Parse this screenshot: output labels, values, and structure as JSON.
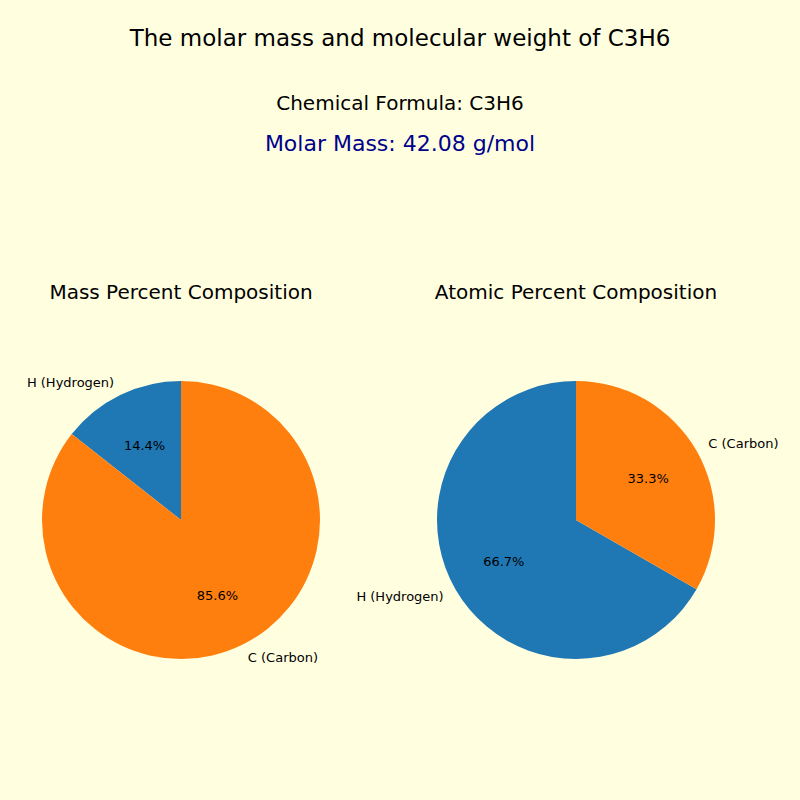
{
  "title": "The molar mass and molecular weight of C3H6",
  "subtitles": [
    "Chemical Formula: C3H6",
    "Molar Mass: 42.08 g/mol"
  ],
  "chart_data": [
    {
      "type": "pie",
      "title": "Mass Percent Composition",
      "categories": [
        "H (Hydrogen)",
        "C (Carbon)"
      ],
      "values": [
        14.4,
        85.6
      ],
      "value_labels": [
        "14.4%",
        "85.6%"
      ],
      "colors": [
        "#1f77b4",
        "#ff7f0e"
      ],
      "data_labels": true
    },
    {
      "type": "pie",
      "title": "Atomic Percent Composition",
      "categories": [
        "H (Hydrogen)",
        "C (Carbon)"
      ],
      "values": [
        66.7,
        33.3
      ],
      "value_labels": [
        "66.7%",
        "33.3%"
      ],
      "colors": [
        "#1f77b4",
        "#ff7f0e"
      ],
      "data_labels": true
    }
  ]
}
